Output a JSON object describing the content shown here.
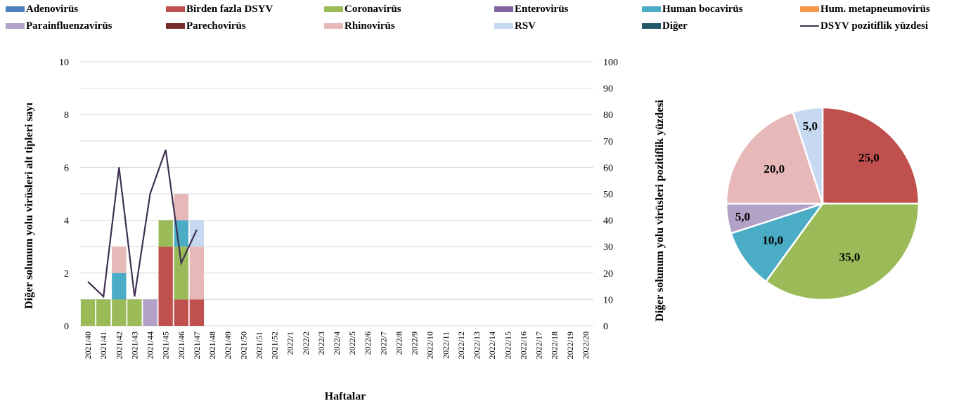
{
  "legend": [
    {
      "label": "Adenovirüs",
      "color": "#4f81bd",
      "kind": "swatch"
    },
    {
      "label": "Birden fazla DSYV",
      "color": "#c0504d",
      "kind": "swatch"
    },
    {
      "label": "Coronavirüs",
      "color": "#9bbb59",
      "kind": "swatch"
    },
    {
      "label": "Enterovirüs",
      "color": "#8064a2",
      "kind": "swatch"
    },
    {
      "label": "Human bocavirüs",
      "color": "#4bacc6",
      "kind": "swatch"
    },
    {
      "label": "Hum. metapneumovirüs",
      "color": "#f79646",
      "kind": "swatch"
    },
    {
      "label": "Parainfluenzavirüs",
      "color": "#b3a2c7",
      "kind": "swatch"
    },
    {
      "label": "Parechovirüs",
      "color": "#772c2a",
      "kind": "swatch"
    },
    {
      "label": "Rhinovirüs",
      "color": "#e6b9b8",
      "kind": "swatch"
    },
    {
      "label": "RSV",
      "color": "#c6d9f1",
      "kind": "swatch"
    },
    {
      "label": "Diğer",
      "color": "#215968",
      "kind": "swatch"
    },
    {
      "label": "DSYV pozitiflik yüzdesi",
      "color": "#3f3151",
      "kind": "line"
    }
  ],
  "chart_data": [
    {
      "type": "bar",
      "stacked": true,
      "xlabel": "Haftalar",
      "ylabel": "Diğer solunum yolu virüsleri alt tipleri sayı",
      "y2label": "Diğer solunum yolu virüsleri pozitiflik yüzdesi",
      "ylim": [
        0,
        10
      ],
      "yticks": [
        "0",
        "2",
        "4",
        "6",
        "8",
        "10"
      ],
      "y2lim": [
        0,
        100
      ],
      "y2ticks": [
        "0",
        "10",
        "20",
        "30",
        "40",
        "50",
        "60",
        "70",
        "80",
        "90",
        "100"
      ],
      "grid": true,
      "categories": [
        "2021/40",
        "2021/41",
        "2021/42",
        "2021/43",
        "2021/44",
        "2021/45",
        "2021/46",
        "2021/47",
        "2021/48",
        "2021/49",
        "2021/50",
        "2021/51",
        "2021/52",
        "2022/1",
        "2022/2",
        "2022/3",
        "2022/4",
        "2022/5",
        "2022/6",
        "2022/7",
        "2022/8",
        "2022/9",
        "2022/10",
        "2022/11",
        "2022/12",
        "2022/13",
        "2022/14",
        "2022/15",
        "2022/16",
        "2022/17",
        "2022/18",
        "2022/19",
        "2022/20"
      ],
      "series": [
        {
          "name": "Birden fazla DSYV",
          "color": "#c0504d",
          "values": [
            0,
            0,
            0,
            0,
            0,
            3,
            1,
            1,
            0,
            0,
            0,
            0,
            0,
            0,
            0,
            0,
            0,
            0,
            0,
            0,
            0,
            0,
            0,
            0,
            0,
            0,
            0,
            0,
            0,
            0,
            0,
            0,
            0
          ]
        },
        {
          "name": "Coronavirüs",
          "color": "#9bbb59",
          "values": [
            1,
            1,
            1,
            1,
            0,
            1,
            2,
            0,
            0,
            0,
            0,
            0,
            0,
            0,
            0,
            0,
            0,
            0,
            0,
            0,
            0,
            0,
            0,
            0,
            0,
            0,
            0,
            0,
            0,
            0,
            0,
            0,
            0
          ]
        },
        {
          "name": "Human bocavirüs",
          "color": "#4bacc6",
          "values": [
            0,
            0,
            1,
            0,
            0,
            0,
            1,
            0,
            0,
            0,
            0,
            0,
            0,
            0,
            0,
            0,
            0,
            0,
            0,
            0,
            0,
            0,
            0,
            0,
            0,
            0,
            0,
            0,
            0,
            0,
            0,
            0,
            0
          ]
        },
        {
          "name": "Parainfluenzavirüs",
          "color": "#b3a2c7",
          "values": [
            0,
            0,
            0,
            0,
            1,
            0,
            0,
            0,
            0,
            0,
            0,
            0,
            0,
            0,
            0,
            0,
            0,
            0,
            0,
            0,
            0,
            0,
            0,
            0,
            0,
            0,
            0,
            0,
            0,
            0,
            0,
            0,
            0
          ]
        },
        {
          "name": "Rhinovirüs",
          "color": "#e6b9b8",
          "values": [
            0,
            0,
            1,
            0,
            0,
            0,
            1,
            2,
            0,
            0,
            0,
            0,
            0,
            0,
            0,
            0,
            0,
            0,
            0,
            0,
            0,
            0,
            0,
            0,
            0,
            0,
            0,
            0,
            0,
            0,
            0,
            0,
            0
          ]
        },
        {
          "name": "RSV",
          "color": "#c6d9f1",
          "values": [
            0,
            0,
            0,
            0,
            0,
            0,
            0,
            1,
            0,
            0,
            0,
            0,
            0,
            0,
            0,
            0,
            0,
            0,
            0,
            0,
            0,
            0,
            0,
            0,
            0,
            0,
            0,
            0,
            0,
            0,
            0,
            0,
            0
          ]
        }
      ],
      "line_series": {
        "name": "DSYV pozitiflik yüzdesi",
        "color": "#3f3151",
        "axis": "right",
        "values": [
          16.7,
          11.1,
          60.0,
          11.1,
          50.0,
          66.7,
          23.8,
          36.4
        ]
      }
    },
    {
      "type": "pie",
      "slices": [
        {
          "label": "Birden fazla DSYV",
          "value": 25.0,
          "text": "25,0",
          "color": "#c0504d"
        },
        {
          "label": "Coronavirüs",
          "value": 35.0,
          "text": "35,0",
          "color": "#9bbb59"
        },
        {
          "label": "Human bocavirüs",
          "value": 10.0,
          "text": "10,0",
          "color": "#4bacc6"
        },
        {
          "label": "Parainfluenzavirüs",
          "value": 5.0,
          "text": "5,0",
          "color": "#b3a2c7"
        },
        {
          "label": "Rhinovirüs",
          "value": 20.0,
          "text": "20,0",
          "color": "#e6b9b8"
        },
        {
          "label": "RSV",
          "value": 5.0,
          "text": "5,0",
          "color": "#c6d9f1"
        }
      ]
    }
  ]
}
